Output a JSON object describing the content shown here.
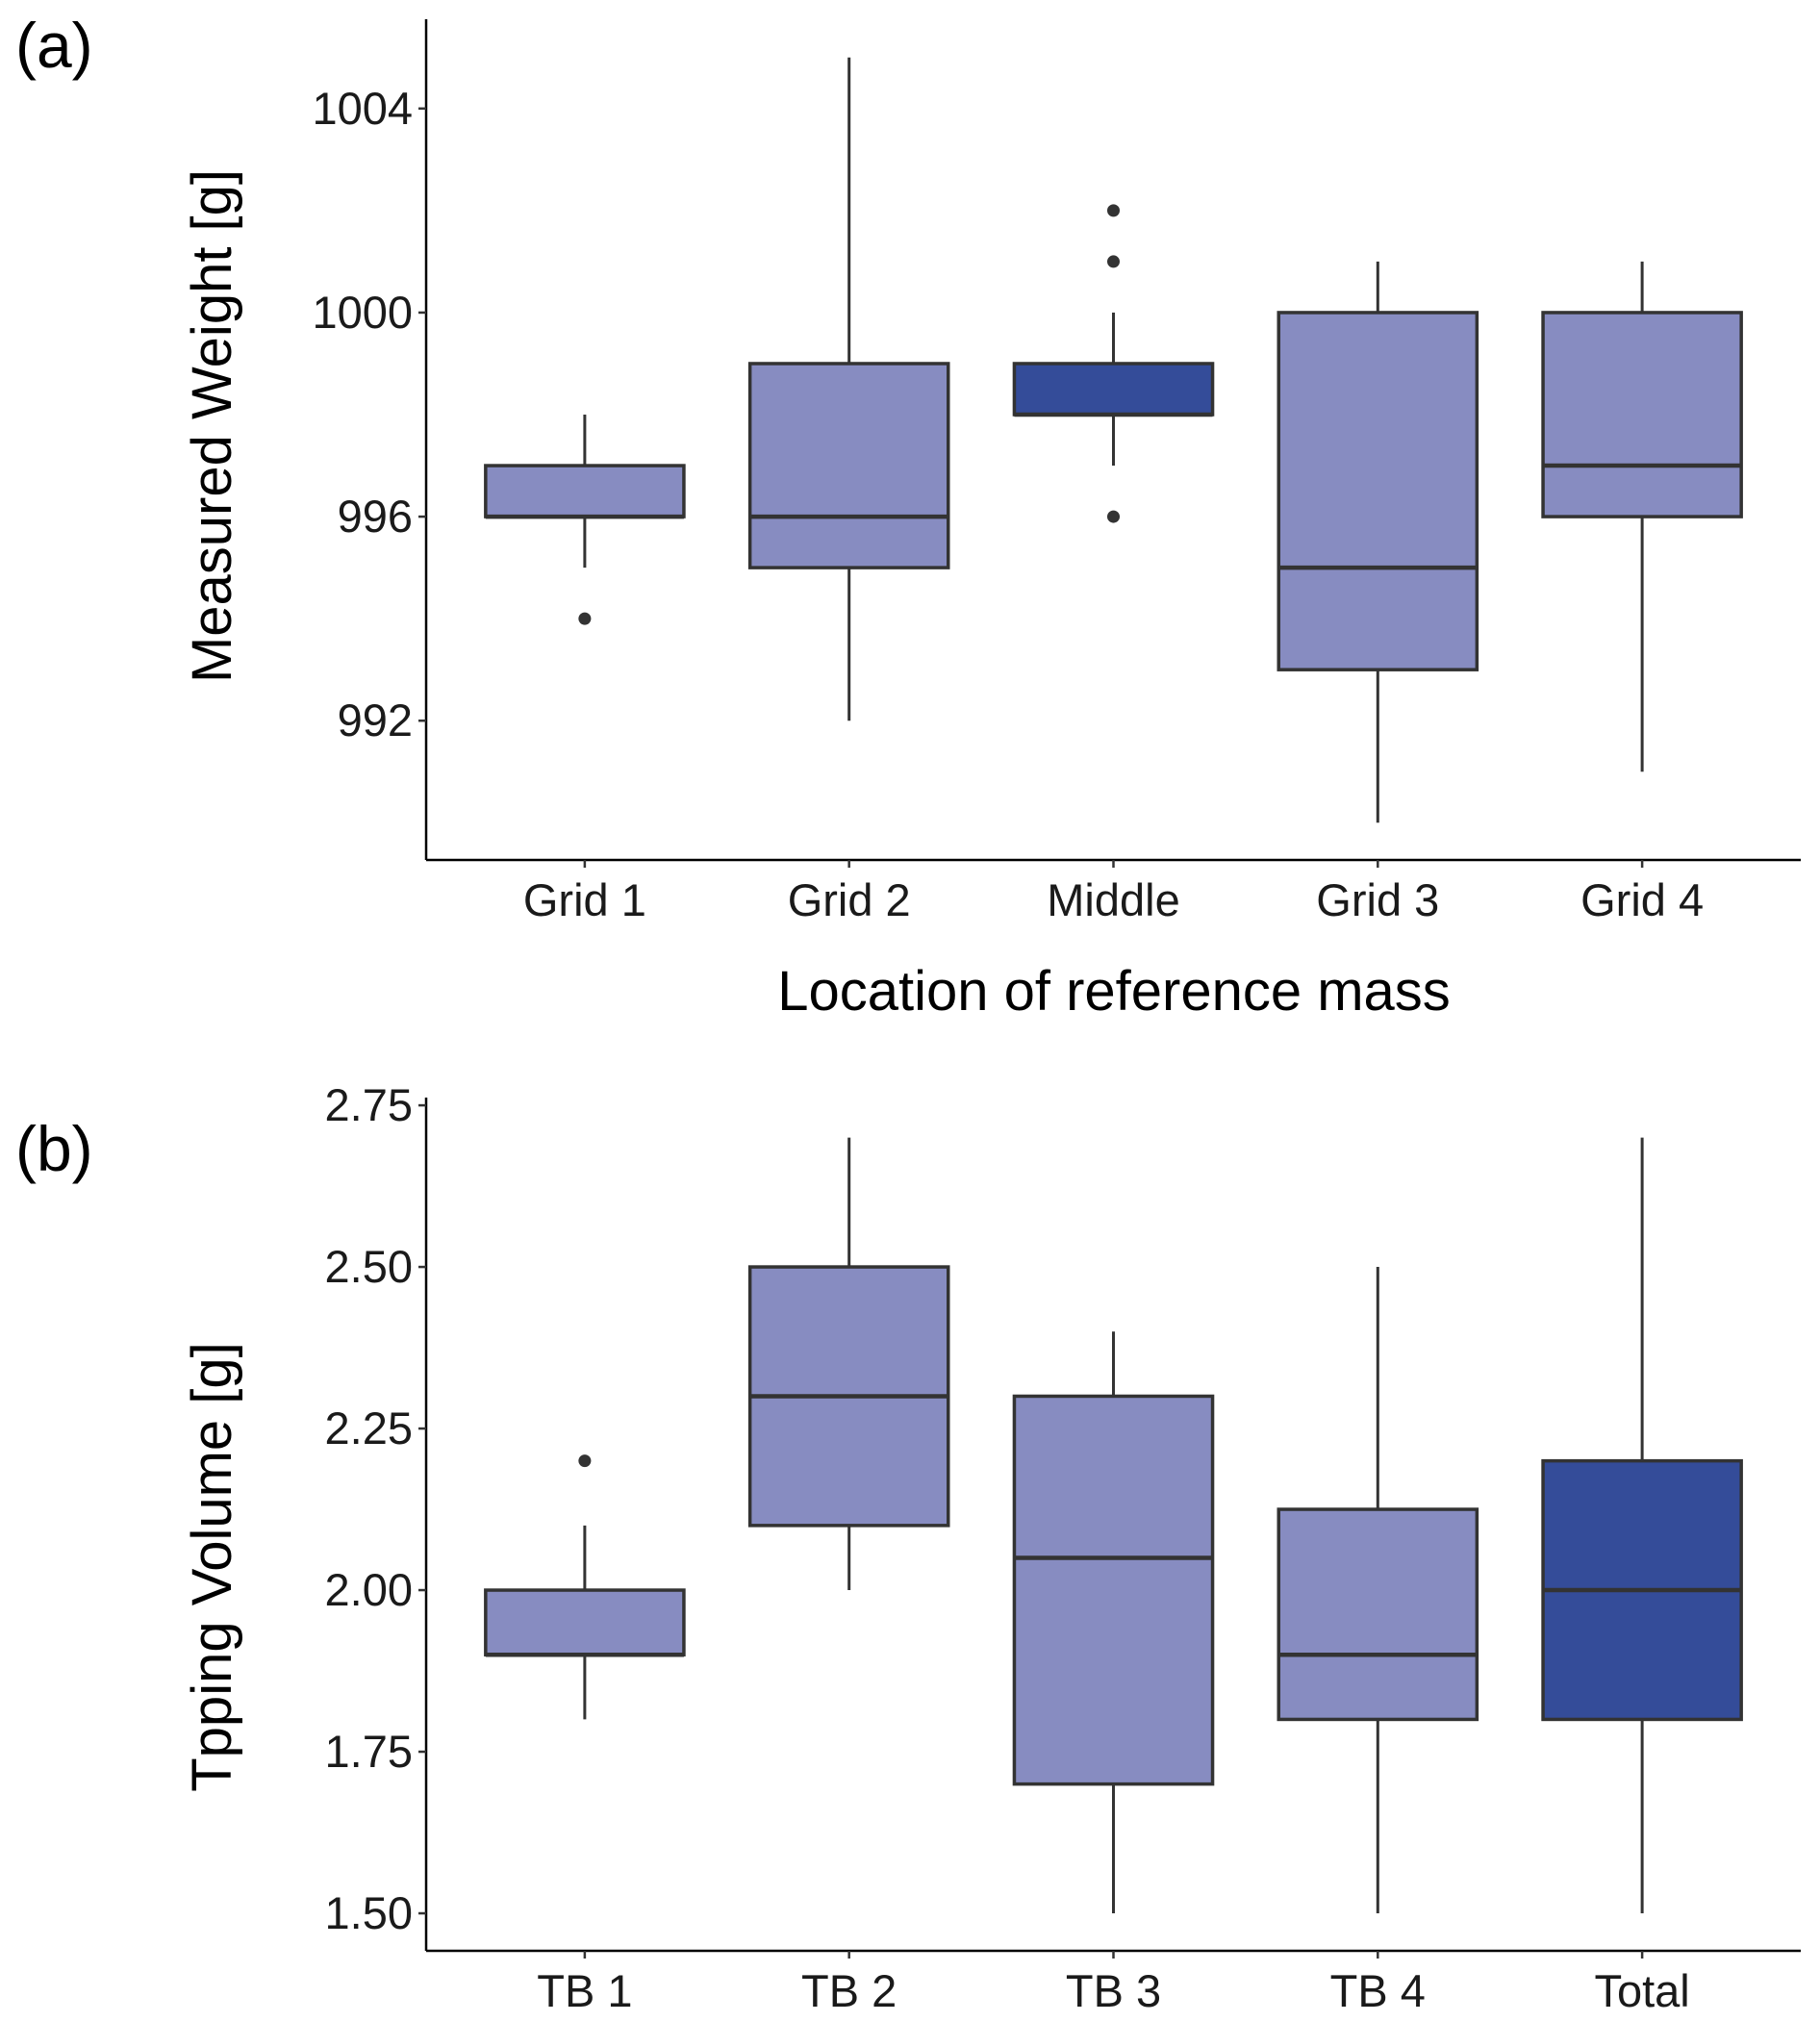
{
  "chart_data": [
    {
      "type": "box",
      "panel_label": "(a)",
      "xlabel": "Location of reference mass",
      "ylabel": "Measured Weight [g]",
      "ylim": [
        989.27,
        1005.75
      ],
      "yticks": [
        992,
        996,
        1000,
        1004
      ],
      "ytick_labels": [
        "992",
        "996",
        "1000",
        "1004"
      ],
      "grid": false,
      "categories": [
        "Grid 1",
        "Grid 2",
        "Middle",
        "Grid 3",
        "Grid 4"
      ],
      "boxes": [
        {
          "min": 995,
          "q1": 996,
          "median": 996,
          "q3": 997,
          "max": 998,
          "outliers": [
            994
          ],
          "highlight": false
        },
        {
          "min": 992,
          "q1": 995,
          "median": 996,
          "q3": 999,
          "max": 1005,
          "outliers": [],
          "highlight": false
        },
        {
          "min": 997,
          "q1": 998,
          "median": 998,
          "q3": 999,
          "max": 1000,
          "outliers": [
            1002,
            1001,
            996
          ],
          "highlight": true
        },
        {
          "min": 990,
          "q1": 993,
          "median": 995,
          "q3": 1000,
          "max": 1001,
          "outliers": [],
          "highlight": false
        },
        {
          "min": 991,
          "q1": 996,
          "median": 997,
          "q3": 1000,
          "max": 1001,
          "outliers": [],
          "highlight": false
        }
      ]
    },
    {
      "type": "box",
      "panel_label": "(b)",
      "xlabel": "",
      "ylabel": "Tpping Volume [g]",
      "ylim": [
        1.442,
        2.762
      ],
      "yticks": [
        1.5,
        1.75,
        2.0,
        2.25,
        2.5,
        2.75
      ],
      "ytick_labels": [
        "1.50",
        "1.75",
        "2.00",
        "2.25",
        "2.50",
        "2.75"
      ],
      "grid": false,
      "categories": [
        "TB 1",
        "TB 2",
        "TB 3",
        "TB 4",
        "Total"
      ],
      "boxes": [
        {
          "min": 1.8,
          "q1": 1.9,
          "median": 1.9,
          "q3": 2.0,
          "max": 2.1,
          "outliers": [
            2.2
          ],
          "highlight": false
        },
        {
          "min": 2.0,
          "q1": 2.1,
          "median": 2.3,
          "q3": 2.5,
          "max": 2.7,
          "outliers": [],
          "highlight": false
        },
        {
          "min": 1.5,
          "q1": 1.7,
          "median": 2.05,
          "q3": 2.3,
          "max": 2.4,
          "outliers": [],
          "highlight": false
        },
        {
          "min": 1.5,
          "q1": 1.8,
          "median": 1.9,
          "q3": 2.125,
          "max": 2.5,
          "outliers": [],
          "highlight": false
        },
        {
          "min": 1.5,
          "q1": 1.8,
          "median": 2.0,
          "q3": 2.2,
          "max": 2.7,
          "outliers": [],
          "highlight": true
        }
      ]
    }
  ],
  "colors": {
    "box_fill": "#878cc1",
    "highlight_fill": "#344c99",
    "stroke": "#333333"
  }
}
